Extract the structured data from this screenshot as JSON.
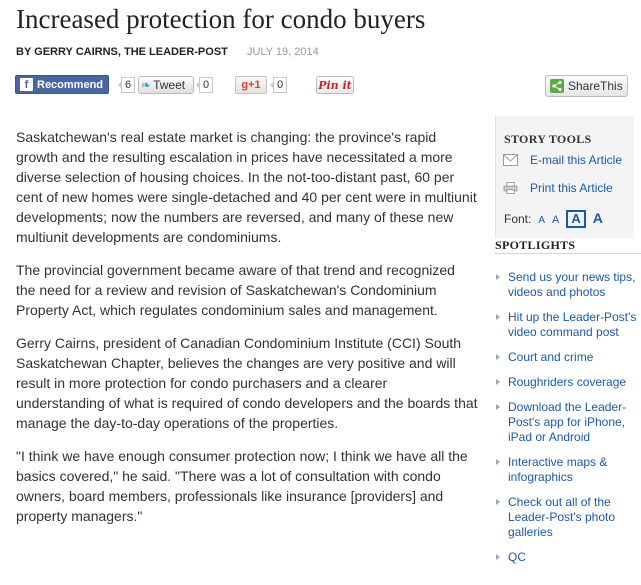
{
  "article": {
    "headline": "Increased protection for condo buyers",
    "byline": "BY GERRY CAIRNS, THE LEADER-POST",
    "date": "JULY 19, 2014",
    "paragraphs": [
      "Saskatchewan's real estate market is changing: the province's rapid growth and the resulting escalation in prices have necessitated a more diverse selection of housing choices. In the not-too-distant past, 60 per cent of new homes were single-detached and 40 per cent were in multiunit developments; now the numbers are reversed, and many of these new multiunit developments are condominiums.",
      "The provincial government became aware of that trend and recognized the need for a review and revision of Saskatchewan's Condominium Property Act, which regulates condominium sales and management.",
      "Gerry Cairns, president of Canadian Condominium Institute (CCI) South Saskatchewan Chapter, believes the changes are very positive and will result in more protection for condo purchasers and a clearer understanding of what is required of condo developers and the boards that manage the day-to-day operations of the properties.",
      "\"I think we have enough consumer protection now; I think we have all the basics covered,\" he said. \"There was a lot of consultation with condo owners, board members, professionals like insurance [providers] and property managers.\""
    ]
  },
  "social": {
    "facebook_label": "Recommend",
    "facebook_icon_glyph": "f",
    "facebook_count": "6",
    "tweet_label": "Tweet",
    "tweet_count": "0",
    "gplus_label": "g+1",
    "gplus_count": "0",
    "pinit_label": "Pin it",
    "share_label": "ShareThis"
  },
  "story_tools": {
    "title": "STORY TOOLS",
    "email_label": "E-mail this Article",
    "print_label": "Print this Article",
    "font_label": "Font:",
    "font_sizes": [
      "A",
      "A",
      "A",
      "A"
    ],
    "selected_font_size_index": 2
  },
  "spotlights": {
    "title": "SPOTLIGHTS",
    "items": [
      "Send us your news tips, videos and photos",
      "Hit up the Leader-Post's video command post",
      "Court and crime",
      "Roughriders coverage",
      "Download the Leader-Post's app for iPhone, iPad or Android",
      "Interactive maps & infographics",
      "Check out all of the Leader-Post's photo galleries",
      "QC"
    ]
  },
  "colors": {
    "link": "#1a5aa5",
    "facebook": "#4a66a0",
    "twitter": "#2aa9e0",
    "gplus": "#d23f31",
    "pinterest": "#cb2027",
    "share": "#5fa84a"
  },
  "icons": [
    "facebook-icon",
    "twitter-bird-icon",
    "sharethis-icon",
    "envelope-icon",
    "printer-icon"
  ]
}
